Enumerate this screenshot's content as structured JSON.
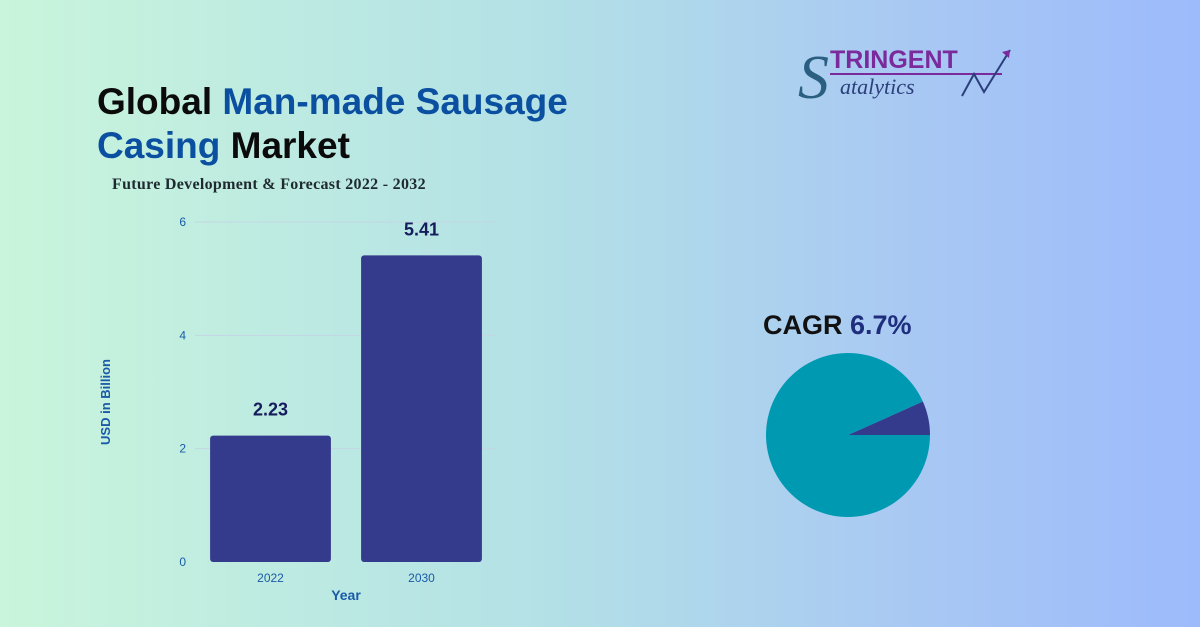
{
  "title": {
    "part1": "Global ",
    "part2": "Man-made Sausage Casing",
    "part3": " Market"
  },
  "subtitle": "Future Development & Forecast 2022 - 2032",
  "logo": {
    "line1": "TRINGENT",
    "line2": "atalytics",
    "initial": "S"
  },
  "chart_data": [
    {
      "type": "bar",
      "categories": [
        "2022",
        "2030"
      ],
      "values": [
        2.23,
        5.41
      ],
      "data_labels": [
        "2.23",
        "5.41"
      ],
      "xlabel": "Year",
      "ylabel": "USD in Billion",
      "ylim": [
        0,
        6
      ],
      "yticks": [
        0,
        2,
        4,
        6
      ],
      "grid": true,
      "bar_color": "#343a8c"
    },
    {
      "type": "pie",
      "title_label": "CAGR",
      "title_value": "6.7%",
      "values": [
        6.7,
        93.3
      ],
      "colors": [
        "#343a8c",
        "#0099b2"
      ]
    }
  ],
  "colors": {
    "title_accent": "#0a4fa0",
    "axis_text": "#1a5aa8",
    "label_dark": "#161c5c"
  }
}
